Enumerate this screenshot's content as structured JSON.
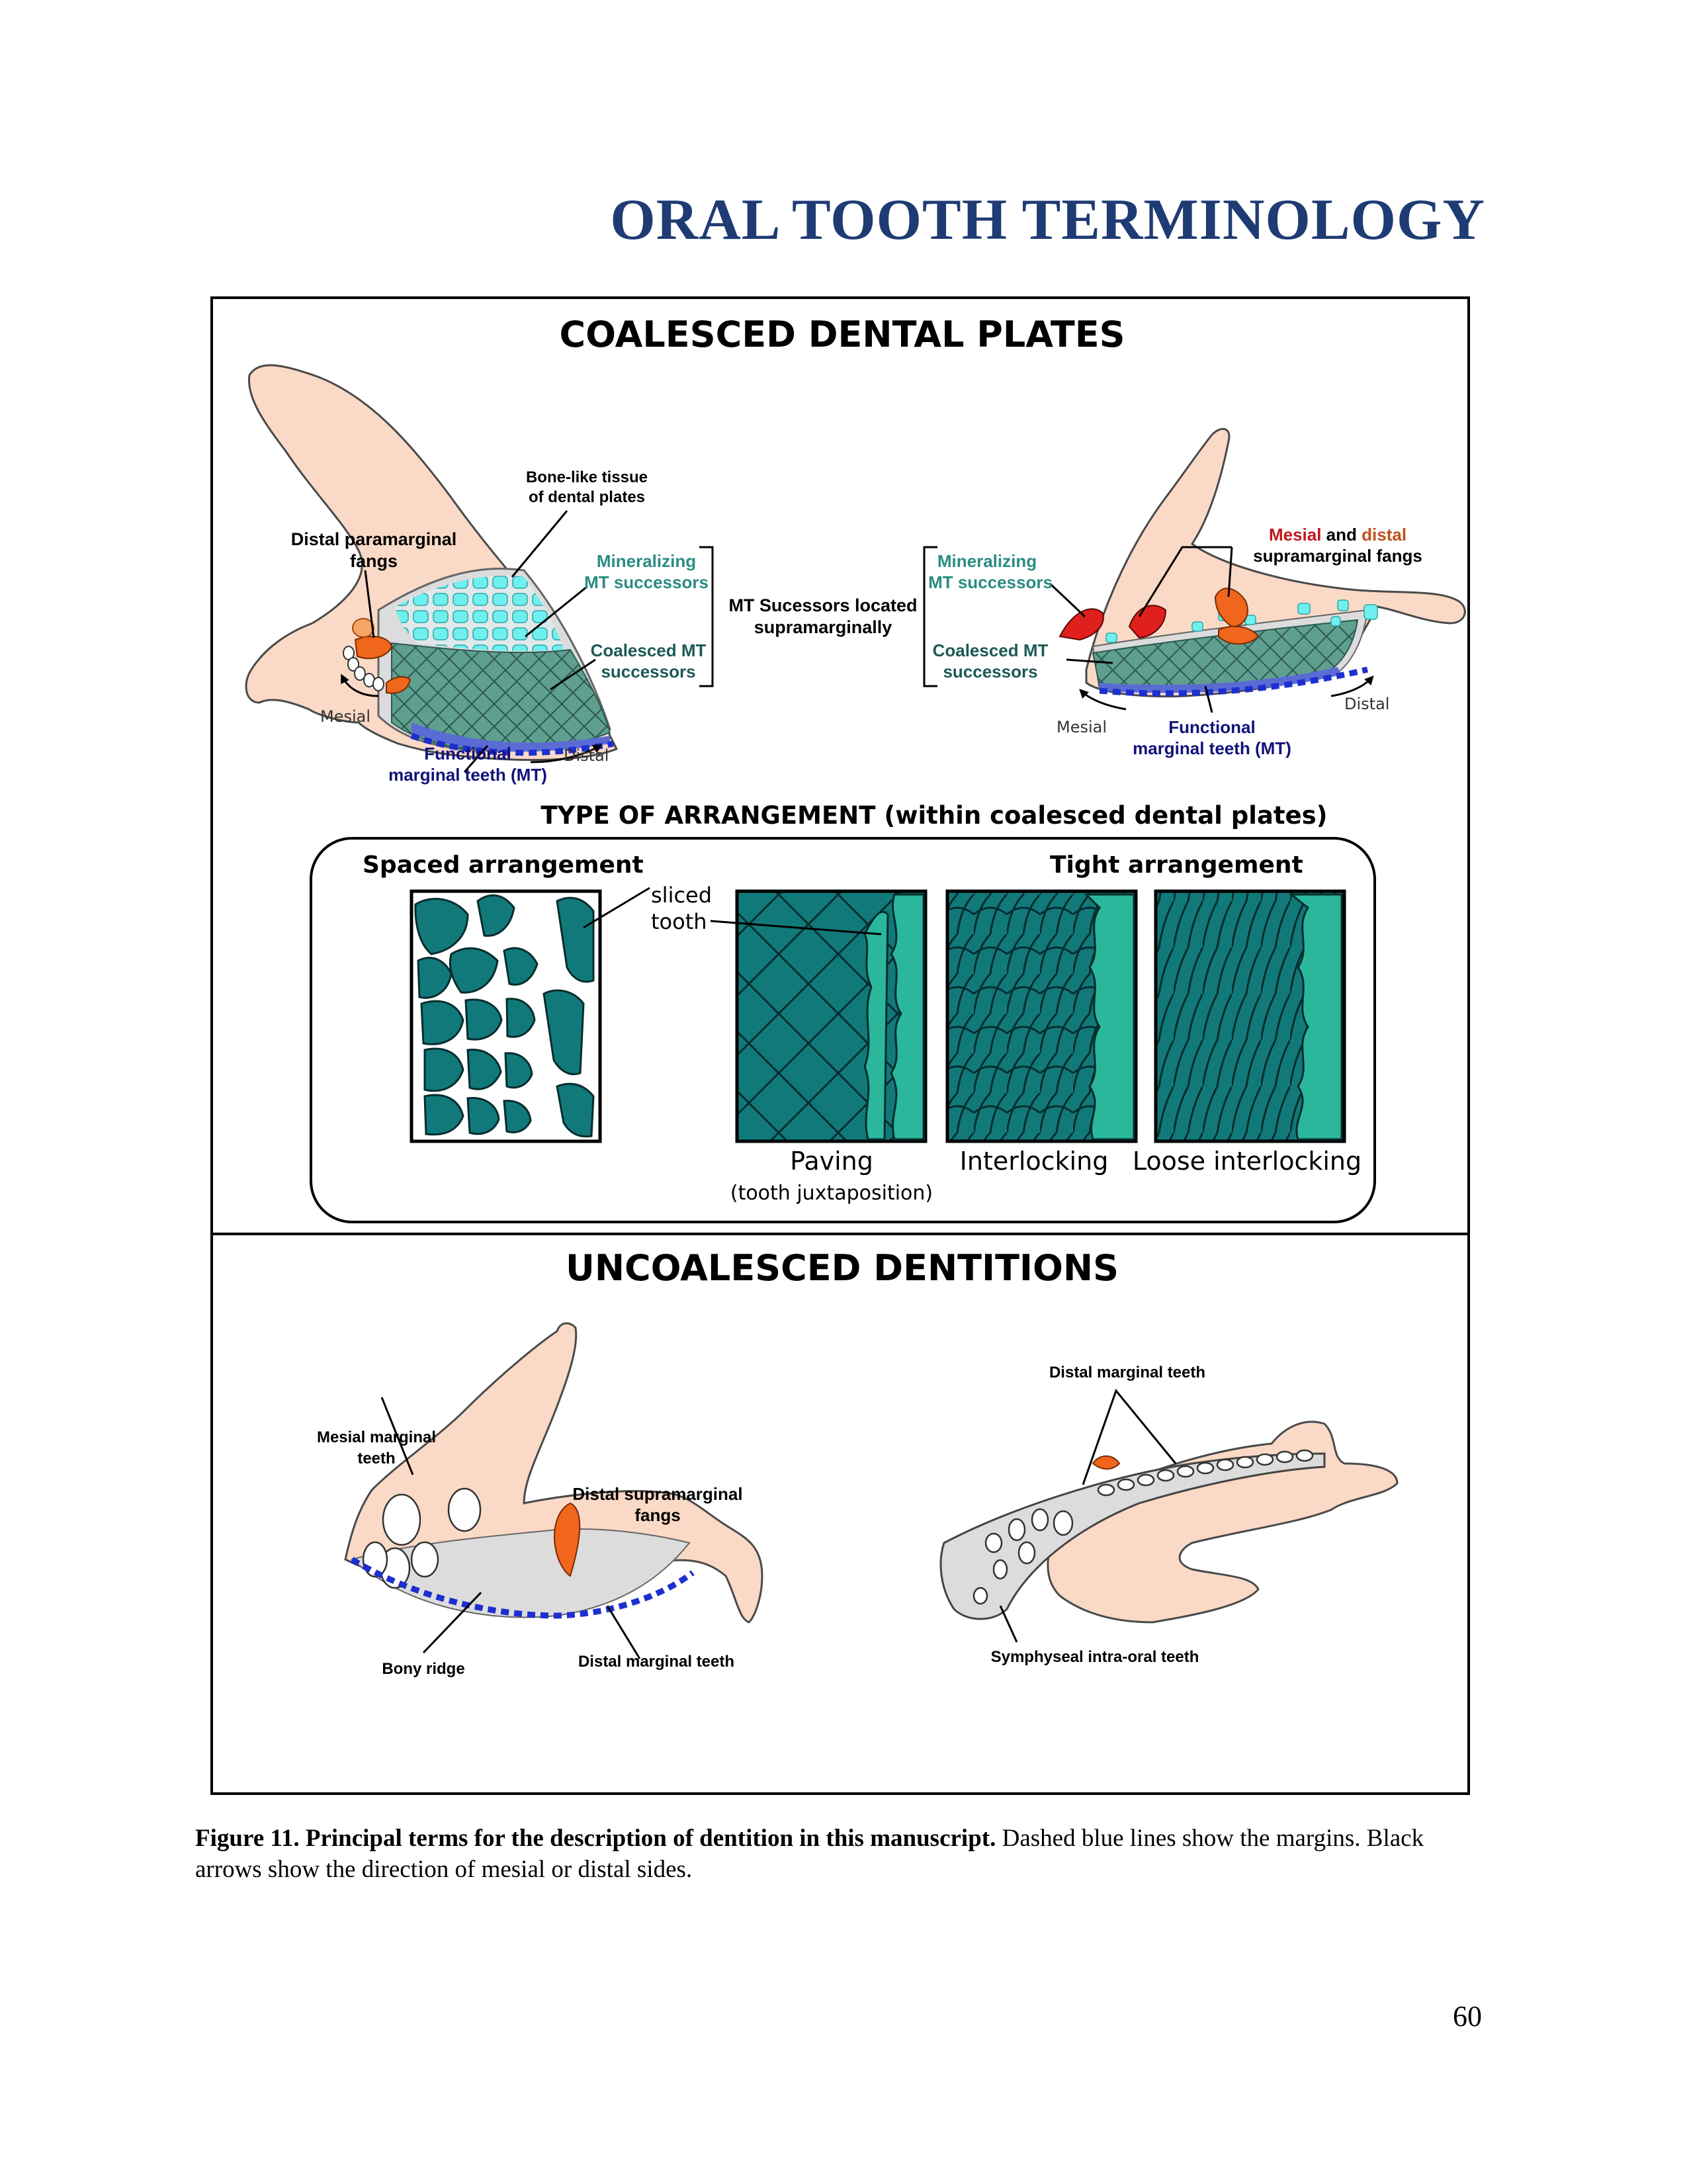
{
  "page": {
    "title": "ORAL TOOTH TERMINOLOGY",
    "page_number": "60"
  },
  "figure": {
    "coalesced": {
      "heading": "COALESCED DENTAL PLATES",
      "left": {
        "bone_like_1": "Bone-like tissue",
        "bone_like_2": "of dental plates",
        "paramarginal_1": "Distal paramarginal",
        "paramarginal_2": "fangs",
        "mineralizing_1": "Mineralizing",
        "mineralizing_2": "MT successors",
        "coalesced_1": "Coalesced MT",
        "coalesced_2": "successors",
        "mesial": "Mesial",
        "distal": "Distal",
        "functional_1": "Functional",
        "functional_2": "marginal teeth (MT)"
      },
      "middle": {
        "line1": "MT Sucessors located",
        "line2": "supramarginally"
      },
      "right": {
        "fangs_1a": "Mesial",
        "fangs_1b": "and",
        "fangs_1c": "distal",
        "fangs_2": "supramarginal fangs",
        "mineralizing_1": "Mineralizing",
        "mineralizing_2": "MT successors",
        "coalesced_1": "Coalesced MT",
        "coalesced_2": "successors",
        "mesial": "Mesial",
        "distal": "Distal",
        "functional_1": "Functional",
        "functional_2": "marginal teeth (MT)"
      },
      "arrangement": {
        "heading": "TYPE OF ARRANGEMENT (within coalesced dental plates)",
        "spaced": "Spaced arrangement",
        "tight": "Tight arrangement",
        "sliced_1": "sliced",
        "sliced_2": "tooth",
        "paving": "Paving",
        "paving_sub": "(tooth juxtaposition)",
        "interlocking": "Interlocking",
        "loose": "Loose interlocking"
      }
    },
    "uncoalesced": {
      "heading": "UNCOALESCED DENTITIONS",
      "mesial_marginal_1": "Mesial marginal",
      "mesial_marginal_2": "teeth",
      "distal_supra_1": "Distal supramarginal",
      "distal_supra_2": "fangs",
      "bony_ridge": "Bony ridge",
      "distal_marginal_left": "Distal marginal teeth",
      "distal_marginal_right": "Distal marginal teeth",
      "symphyseal": "Symphyseal intra-oral teeth"
    }
  },
  "caption": {
    "bold": "Figure 11. Principal terms for the description of dentition in this manuscript.",
    "rest": " Dashed blue lines show the margins. Black arrows show the direction of mesial or distal sides."
  },
  "colors": {
    "title_blue": "#1f3b73",
    "bone": "#fad9c6",
    "teal": "#12797a",
    "light_teal": "#2bb79c",
    "cyan": "#6ff0ef",
    "grey_teeth": "#5f9f90",
    "fang_orange": "#f0661c",
    "fang_red": "#e0201c",
    "margin_blue": "#1d2fcf",
    "mesial_label": "#c0181c"
  }
}
